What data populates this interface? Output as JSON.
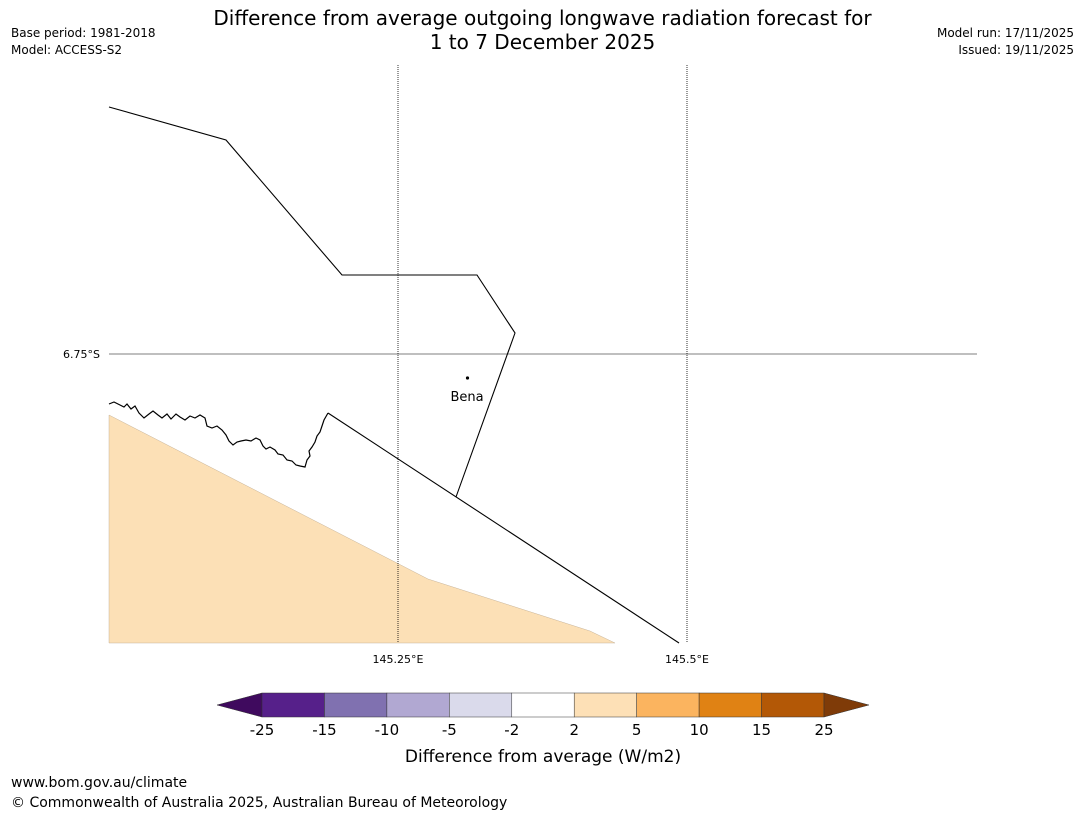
{
  "title_line1": "Difference from average outgoing longwave radiation forecast for",
  "title_line2": "1 to 7 December 2025",
  "base_period": "Base period: 1981-2018",
  "model": "Model: ACCESS-S2",
  "model_run": "Model run: 17/11/2025",
  "issued": "Issued: 19/11/2025",
  "map": {
    "lat_label": "6.75°S",
    "lon_labels": [
      "145.25°E",
      "145.5°E"
    ],
    "place_label": "Bena",
    "land_fill_color": "#fce0b6",
    "shaded_category": "2 to 5"
  },
  "colorbar": {
    "ticks": [
      "-25",
      "-15",
      "-10",
      "-5",
      "-2",
      "2",
      "5",
      "10",
      "15",
      "25"
    ],
    "colors": [
      "#3f0a5e",
      "#56208a",
      "#8071b0",
      "#b1a8d2",
      "#dadaeb",
      "#ffffff",
      "#fde0b6",
      "#fbb45f",
      "#e08214",
      "#b35806",
      "#7f3b08"
    ],
    "label": "Difference from average (W/m2)"
  },
  "footer_url": "www.bom.gov.au/climate",
  "footer_copyright": "© Commonwealth of Australia 2025, Australian Bureau of Meteorology"
}
